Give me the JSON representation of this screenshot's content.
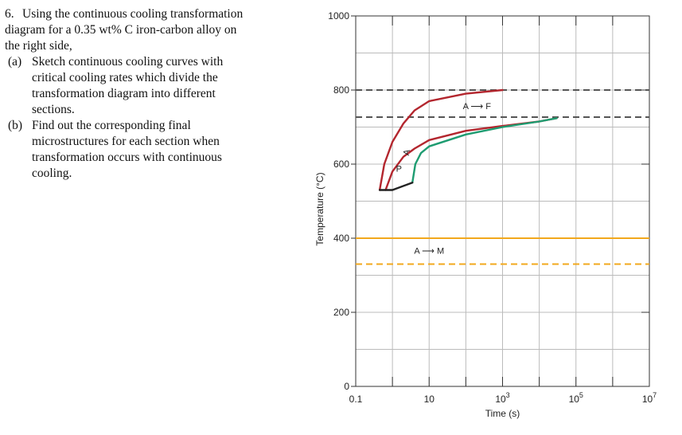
{
  "question": {
    "number": "6.",
    "intro_lines": [
      "Using the continuous cooling transformation",
      "diagram for a 0.35 wt% C iron-carbon alloy on",
      "the right side,"
    ],
    "parts": [
      {
        "label": "(a)",
        "lines": [
          "Sketch continuous cooling curves with",
          "critical cooling rates which divide the",
          "transformation diagram into different",
          "sections."
        ]
      },
      {
        "label": "(b)",
        "lines": [
          "Find out the corresponding final",
          "microstructures for each section when",
          "transformation occurs with continuous",
          "cooling."
        ]
      }
    ]
  },
  "chart_data": {
    "type": "line",
    "xlabel": "Time (s)",
    "ylabel": "Temperature (°C)",
    "x_scale": "log",
    "xlim": [
      0.1,
      10000000
    ],
    "ylim": [
      0,
      1000
    ],
    "x_tick_labels": [
      {
        "value": 0.1,
        "base": "0.1",
        "exp": ""
      },
      {
        "value": 10,
        "base": "10",
        "exp": ""
      },
      {
        "value": 1000,
        "base": "10",
        "exp": "3"
      },
      {
        "value": 100000,
        "base": "10",
        "exp": "5"
      },
      {
        "value": 10000000,
        "base": "10",
        "exp": "7"
      }
    ],
    "y_ticks": [
      0,
      200,
      400,
      600,
      800,
      1000
    ],
    "grid": true,
    "reference_lines": [
      {
        "y": 800,
        "style": "dashed",
        "color": "#555555"
      },
      {
        "y": 727,
        "style": "dashed",
        "color": "#555555"
      },
      {
        "y": 400,
        "style": "solid",
        "color": "#f2a81d"
      },
      {
        "y": 330,
        "style": "dashed",
        "color": "#f2a81d"
      }
    ],
    "curves": [
      {
        "role": "transformation-start",
        "color": "#b3262e",
        "points": [
          [
            0.45,
            530
          ],
          [
            0.6,
            600
          ],
          [
            1,
            660
          ],
          [
            2,
            710
          ],
          [
            4,
            745
          ],
          [
            10,
            770
          ],
          [
            100,
            790
          ],
          [
            1000,
            800
          ]
        ]
      },
      {
        "role": "transformation-start-inner",
        "color": "#b3262e",
        "points": [
          [
            0.65,
            530
          ],
          [
            1,
            580
          ],
          [
            2,
            620
          ],
          [
            4,
            642
          ],
          [
            10,
            665
          ],
          [
            100,
            690
          ],
          [
            1000,
            703
          ],
          [
            10000,
            715
          ],
          [
            30000,
            724
          ]
        ]
      },
      {
        "role": "transformation-finish",
        "color": "#1e9c71",
        "points": [
          [
            3.5,
            550
          ],
          [
            4.2,
            600
          ],
          [
            6,
            630
          ],
          [
            10,
            648
          ],
          [
            100,
            680
          ],
          [
            1000,
            700
          ],
          [
            10000,
            715
          ],
          [
            30000,
            724
          ]
        ]
      },
      {
        "role": "bainite-start",
        "color": "#222222",
        "points": [
          [
            0.45,
            530
          ],
          [
            1,
            530
          ],
          [
            3.5,
            550
          ]
        ]
      }
    ],
    "annotations": [
      {
        "text": "A ⟶ F",
        "x": 200,
        "y": 748
      },
      {
        "text": "A ⟶ M",
        "x": 10,
        "y": 358
      },
      {
        "text": "A",
        "x": 2.9,
        "y": 630,
        "rotate": -78
      },
      {
        "text": "P",
        "x": 1.5,
        "y": 580
      }
    ]
  }
}
